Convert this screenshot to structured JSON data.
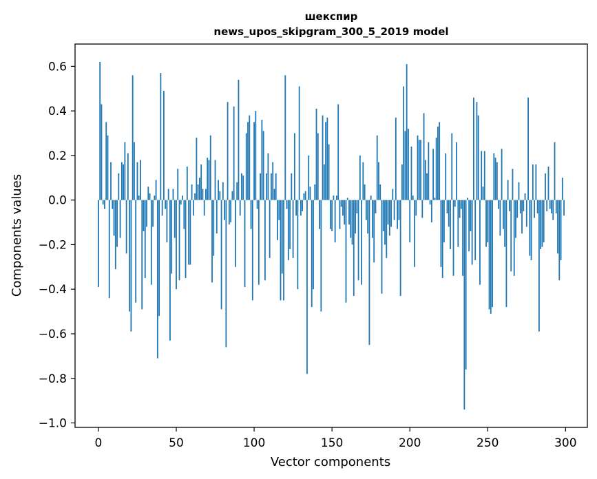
{
  "chart_data": {
    "type": "bar",
    "title_line1": "шекспир",
    "title_line2": "news_upos_skipgram_300_5_2019 model",
    "xlabel": "Vector components",
    "ylabel": "Components values",
    "xlim": [
      -15,
      314
    ],
    "ylim": [
      -1.02,
      0.7
    ],
    "xticks": [
      0,
      50,
      100,
      150,
      200,
      250,
      300
    ],
    "xtick_labels": [
      "0",
      "50",
      "100",
      "150",
      "200",
      "250",
      "300"
    ],
    "yticks": [
      0.6,
      0.4,
      0.2,
      0.0,
      -0.2,
      -0.4,
      -0.6,
      -0.8,
      -1.0
    ],
    "ytick_labels": [
      "0.6",
      "0.4",
      "0.2",
      "0.0",
      "−0.2",
      "−0.4",
      "−0.6",
      "−0.8",
      "−1.0"
    ],
    "bar_color": "#1f77b4",
    "grid": false,
    "values": [
      -0.39,
      0.62,
      0.43,
      -0.02,
      -0.04,
      0.35,
      0.29,
      -0.44,
      0.17,
      -0.04,
      -0.16,
      -0.31,
      -0.21,
      0.12,
      -0.17,
      0.17,
      0.16,
      0.26,
      -0.24,
      0.21,
      -0.5,
      -0.59,
      0.56,
      0.26,
      -0.46,
      0.17,
      0.02,
      0.18,
      -0.49,
      -0.14,
      -0.35,
      -0.12,
      0.06,
      0.03,
      -0.38,
      -0.12,
      0.02,
      0.09,
      -0.71,
      -0.52,
      0.57,
      -0.07,
      0.49,
      -0.04,
      -0.19,
      0.05,
      -0.63,
      -0.33,
      0.05,
      -0.17,
      -0.4,
      0.14,
      -0.36,
      -0.02,
      0.02,
      -0.13,
      -0.35,
      0.15,
      -0.29,
      -0.29,
      0.07,
      -0.07,
      0.03,
      0.28,
      0.07,
      0.1,
      0.16,
      0.05,
      -0.07,
      0.05,
      0.19,
      0.18,
      0.29,
      -0.37,
      -0.25,
      0.18,
      -0.15,
      0.09,
      0.04,
      -0.49,
      0.08,
      -0.09,
      -0.66,
      0.44,
      -0.11,
      -0.1,
      0.04,
      0.42,
      -0.3,
      0.08,
      0.54,
      -0.07,
      0.12,
      0.11,
      -0.39,
      0.3,
      0.35,
      0.38,
      -0.13,
      -0.45,
      0.35,
      0.4,
      -0.04,
      -0.38,
      0.12,
      0.36,
      0.31,
      -0.36,
      0.12,
      0.21,
      -0.26,
      0.12,
      0.17,
      0.05,
      0.12,
      -0.18,
      -0.09,
      -0.45,
      -0.33,
      -0.45,
      0.56,
      -0.04,
      -0.27,
      -0.22,
      0.12,
      -0.26,
      0.3,
      -0.07,
      -0.4,
      0.51,
      -0.07,
      -0.05,
      0.03,
      0.04,
      -0.78,
      0.2,
      0.06,
      -0.48,
      -0.4,
      0.07,
      0.41,
      0.3,
      -0.13,
      -0.5,
      0.38,
      0.16,
      0.35,
      0.37,
      0.25,
      -0.13,
      -0.14,
      0.02,
      -0.19,
      0.02,
      0.43,
      -0.13,
      -0.03,
      -0.07,
      -0.11,
      -0.46,
      0.01,
      -0.11,
      -0.17,
      -0.2,
      -0.43,
      -0.15,
      -0.06,
      -0.36,
      0.2,
      -0.38,
      0.17,
      0.07,
      -0.09,
      -0.15,
      -0.65,
      0.02,
      -0.17,
      -0.28,
      -0.06,
      0.29,
      0.17,
      0.07,
      -0.42,
      -0.14,
      -0.2,
      -0.26,
      -0.11,
      -0.16,
      -0.12,
      0.05,
      -0.09,
      0.37,
      -0.13,
      -0.09,
      -0.43,
      0.16,
      0.51,
      0.31,
      0.61,
      0.32,
      -0.19,
      0.24,
      0.02,
      -0.3,
      -0.07,
      0.29,
      0.27,
      0.27,
      -0.08,
      0.39,
      0.18,
      0.12,
      0.26,
      -0.02,
      -0.1,
      0.23,
      0.01,
      0.28,
      0.33,
      0.35,
      -0.3,
      -0.35,
      -0.19,
      0.21,
      -0.06,
      -0.12,
      -0.22,
      0.3,
      -0.34,
      -0.03,
      0.26,
      -0.21,
      -0.08,
      -0.04,
      -0.34,
      -0.94,
      -0.76,
      0.01,
      -0.23,
      -0.14,
      -0.29,
      0.46,
      -0.27,
      0.44,
      0.38,
      -0.38,
      0.22,
      0.06,
      0.22,
      -0.21,
      -0.19,
      -0.49,
      -0.51,
      -0.48,
      0.21,
      0.19,
      0.17,
      -0.04,
      -0.16,
      0.23,
      -0.13,
      -0.21,
      -0.48,
      0.09,
      -0.05,
      -0.32,
      0.14,
      -0.34,
      -0.17,
      -0.08,
      0.08,
      -0.06,
      -0.15,
      -0.05,
      0.03,
      -0.12,
      0.46,
      -0.25,
      -0.27,
      0.16,
      -0.08,
      0.16,
      -0.06,
      -0.59,
      -0.22,
      -0.21,
      -0.19,
      0.12,
      -0.05,
      0.15,
      -0.04,
      -0.06,
      -0.09,
      0.26,
      -0.06,
      -0.24,
      -0.36,
      -0.27,
      0.1,
      -0.07
    ]
  }
}
